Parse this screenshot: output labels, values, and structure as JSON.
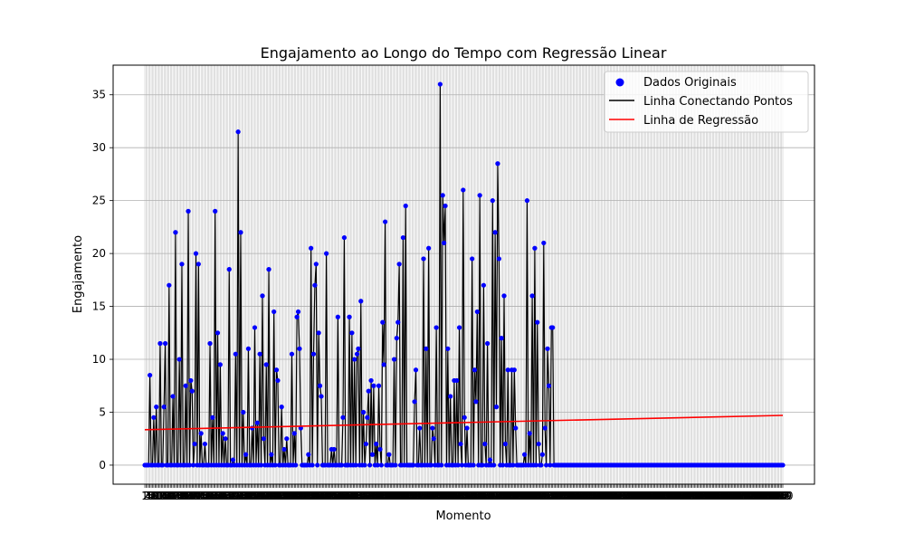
{
  "chart_data": {
    "type": "line",
    "title": "Engajamento ao Longo do Tempo com Regressão Linear",
    "xlabel": "Momento",
    "ylabel": "Engajamento",
    "ylim": [
      -1.8,
      37.8
    ],
    "yticks": [
      0,
      5,
      10,
      15,
      20,
      25,
      30,
      35
    ],
    "grid": true,
    "legend_position": "top-right",
    "legend": [
      {
        "label": "Dados Originais",
        "marker": "dot",
        "color": "#0000ff"
      },
      {
        "label": "Linha Conectando Pontos",
        "marker": "line",
        "color": "#000000"
      },
      {
        "label": "Linha de Regressão",
        "marker": "line",
        "color": "#ff0000"
      }
    ],
    "x_count": 500,
    "series": [
      {
        "name": "Dados Originais",
        "color": "#0000ff",
        "nonzero_points": [
          [
            4,
            8.5
          ],
          [
            7,
            4.5
          ],
          [
            9,
            5.5
          ],
          [
            12,
            11.5
          ],
          [
            15,
            5.5
          ],
          [
            16,
            11.5
          ],
          [
            19,
            17
          ],
          [
            22,
            6.5
          ],
          [
            24,
            22
          ],
          [
            27,
            10
          ],
          [
            29,
            19
          ],
          [
            32,
            7.5
          ],
          [
            34,
            24
          ],
          [
            36,
            8
          ],
          [
            37,
            7
          ],
          [
            39,
            2
          ],
          [
            40,
            20
          ],
          [
            42,
            19
          ],
          [
            44,
            3
          ],
          [
            47,
            2
          ],
          [
            51,
            11.5
          ],
          [
            53,
            4.5
          ],
          [
            55,
            24
          ],
          [
            57,
            12.5
          ],
          [
            59,
            9.5
          ],
          [
            61,
            3
          ],
          [
            63,
            2.5
          ],
          [
            66,
            18.5
          ],
          [
            69,
            0.5
          ],
          [
            71,
            10.5
          ],
          [
            73,
            31.5
          ],
          [
            75,
            22
          ],
          [
            77,
            5
          ],
          [
            79,
            1
          ],
          [
            81,
            11
          ],
          [
            84,
            3.5
          ],
          [
            86,
            13
          ],
          [
            88,
            4
          ],
          [
            90,
            10.5
          ],
          [
            92,
            16
          ],
          [
            93,
            2.5
          ],
          [
            95,
            9.5
          ],
          [
            97,
            18.5
          ],
          [
            99,
            1
          ],
          [
            101,
            14.5
          ],
          [
            103,
            9
          ],
          [
            104,
            8
          ],
          [
            107,
            5.5
          ],
          [
            109,
            1.5
          ],
          [
            111,
            2.5
          ],
          [
            115,
            10.5
          ],
          [
            117,
            3
          ],
          [
            119,
            14
          ],
          [
            120,
            14.5
          ],
          [
            121,
            11
          ],
          [
            122,
            3.5
          ],
          [
            128,
            1
          ],
          [
            130,
            20.5
          ],
          [
            132,
            10.5
          ],
          [
            133,
            17
          ],
          [
            134,
            19
          ],
          [
            136,
            12.5
          ],
          [
            137,
            7.5
          ],
          [
            138,
            6.5
          ],
          [
            142,
            20
          ],
          [
            146,
            1.5
          ],
          [
            148,
            1.5
          ],
          [
            151,
            14
          ],
          [
            155,
            4.5
          ],
          [
            156,
            21.5
          ],
          [
            160,
            14
          ],
          [
            162,
            12.5
          ],
          [
            164,
            10
          ],
          [
            166,
            10.5
          ],
          [
            167,
            11
          ],
          [
            169,
            15.5
          ],
          [
            171,
            5
          ],
          [
            173,
            2
          ],
          [
            174,
            4.5
          ],
          [
            175,
            7
          ],
          [
            177,
            8
          ],
          [
            178,
            1
          ],
          [
            179,
            7.5
          ],
          [
            181,
            2
          ],
          [
            183,
            7.5
          ],
          [
            184,
            1.5
          ],
          [
            186,
            13.5
          ],
          [
            187,
            9.5
          ],
          [
            188,
            23
          ],
          [
            191,
            1
          ],
          [
            195,
            10
          ],
          [
            197,
            12
          ],
          [
            198,
            13.5
          ],
          [
            199,
            19
          ],
          [
            202,
            21.5
          ],
          [
            204,
            24.5
          ],
          [
            211,
            6
          ],
          [
            212,
            9
          ],
          [
            215,
            3.5
          ],
          [
            218,
            19.5
          ],
          [
            220,
            11
          ],
          [
            222,
            20.5
          ],
          [
            225,
            3.5
          ],
          [
            226,
            2.5
          ],
          [
            228,
            13
          ],
          [
            231,
            36
          ],
          [
            233,
            25.5
          ],
          [
            234,
            21
          ],
          [
            235,
            24.5
          ],
          [
            237,
            11
          ],
          [
            239,
            6.5
          ],
          [
            242,
            8
          ],
          [
            244,
            8
          ],
          [
            246,
            13
          ],
          [
            247,
            2
          ],
          [
            249,
            26
          ],
          [
            250,
            4.5
          ],
          [
            252,
            3.5
          ],
          [
            256,
            19.5
          ],
          [
            258,
            9
          ],
          [
            259,
            6
          ],
          [
            260,
            14.5
          ],
          [
            262,
            25.5
          ],
          [
            265,
            17
          ],
          [
            266,
            2
          ],
          [
            268,
            11.5
          ],
          [
            270,
            0.5
          ],
          [
            272,
            25
          ],
          [
            274,
            22
          ],
          [
            275,
            5.5
          ],
          [
            276,
            28.5
          ],
          [
            277,
            19.5
          ],
          [
            279,
            12
          ],
          [
            281,
            16
          ],
          [
            282,
            2
          ],
          [
            284,
            9
          ],
          [
            287,
            9
          ],
          [
            289,
            9
          ],
          [
            290,
            3.5
          ],
          [
            297,
            1
          ],
          [
            299,
            25
          ],
          [
            301,
            3
          ],
          [
            303,
            16
          ],
          [
            305,
            20.5
          ],
          [
            307,
            13.5
          ],
          [
            308,
            2
          ],
          [
            311,
            1
          ],
          [
            312,
            21
          ],
          [
            313,
            3.5
          ],
          [
            315,
            11
          ],
          [
            316,
            7.5
          ],
          [
            318,
            13
          ],
          [
            319,
            13
          ]
        ]
      },
      {
        "name": "Linha Conectando Pontos",
        "color": "#000000"
      },
      {
        "name": "Linha de Regressão",
        "color": "#ff0000",
        "y_start": 3.35,
        "y_end": 4.7
      }
    ]
  }
}
